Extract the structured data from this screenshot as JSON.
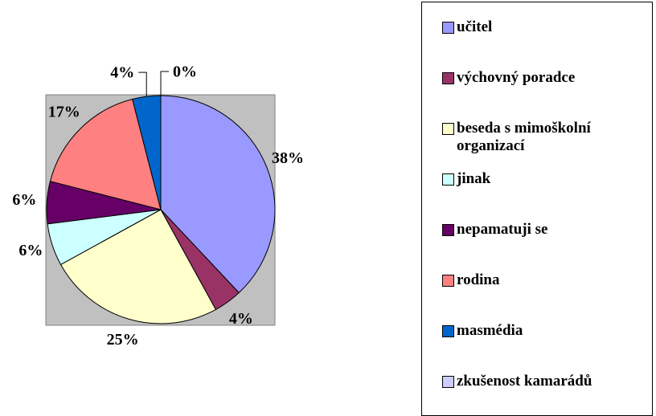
{
  "chart_data": {
    "type": "pie",
    "categories": [
      "učitel",
      "výchovný poradce",
      "beseda s mimoškolní organizací",
      "jinak",
      "nepamatuji se",
      "rodina",
      "masmédia",
      "zkušenost kamarádů"
    ],
    "values": [
      38,
      4,
      25,
      6,
      6,
      17,
      4,
      0
    ],
    "value_labels": [
      "38%",
      "4%",
      "25%",
      "6%",
      "6%",
      "17%",
      "4%",
      "0%"
    ],
    "colors": [
      "#9999ff",
      "#993366",
      "#ffffcc",
      "#ccffff",
      "#660066",
      "#ff8080",
      "#0066cc",
      "#ccccff"
    ]
  }
}
